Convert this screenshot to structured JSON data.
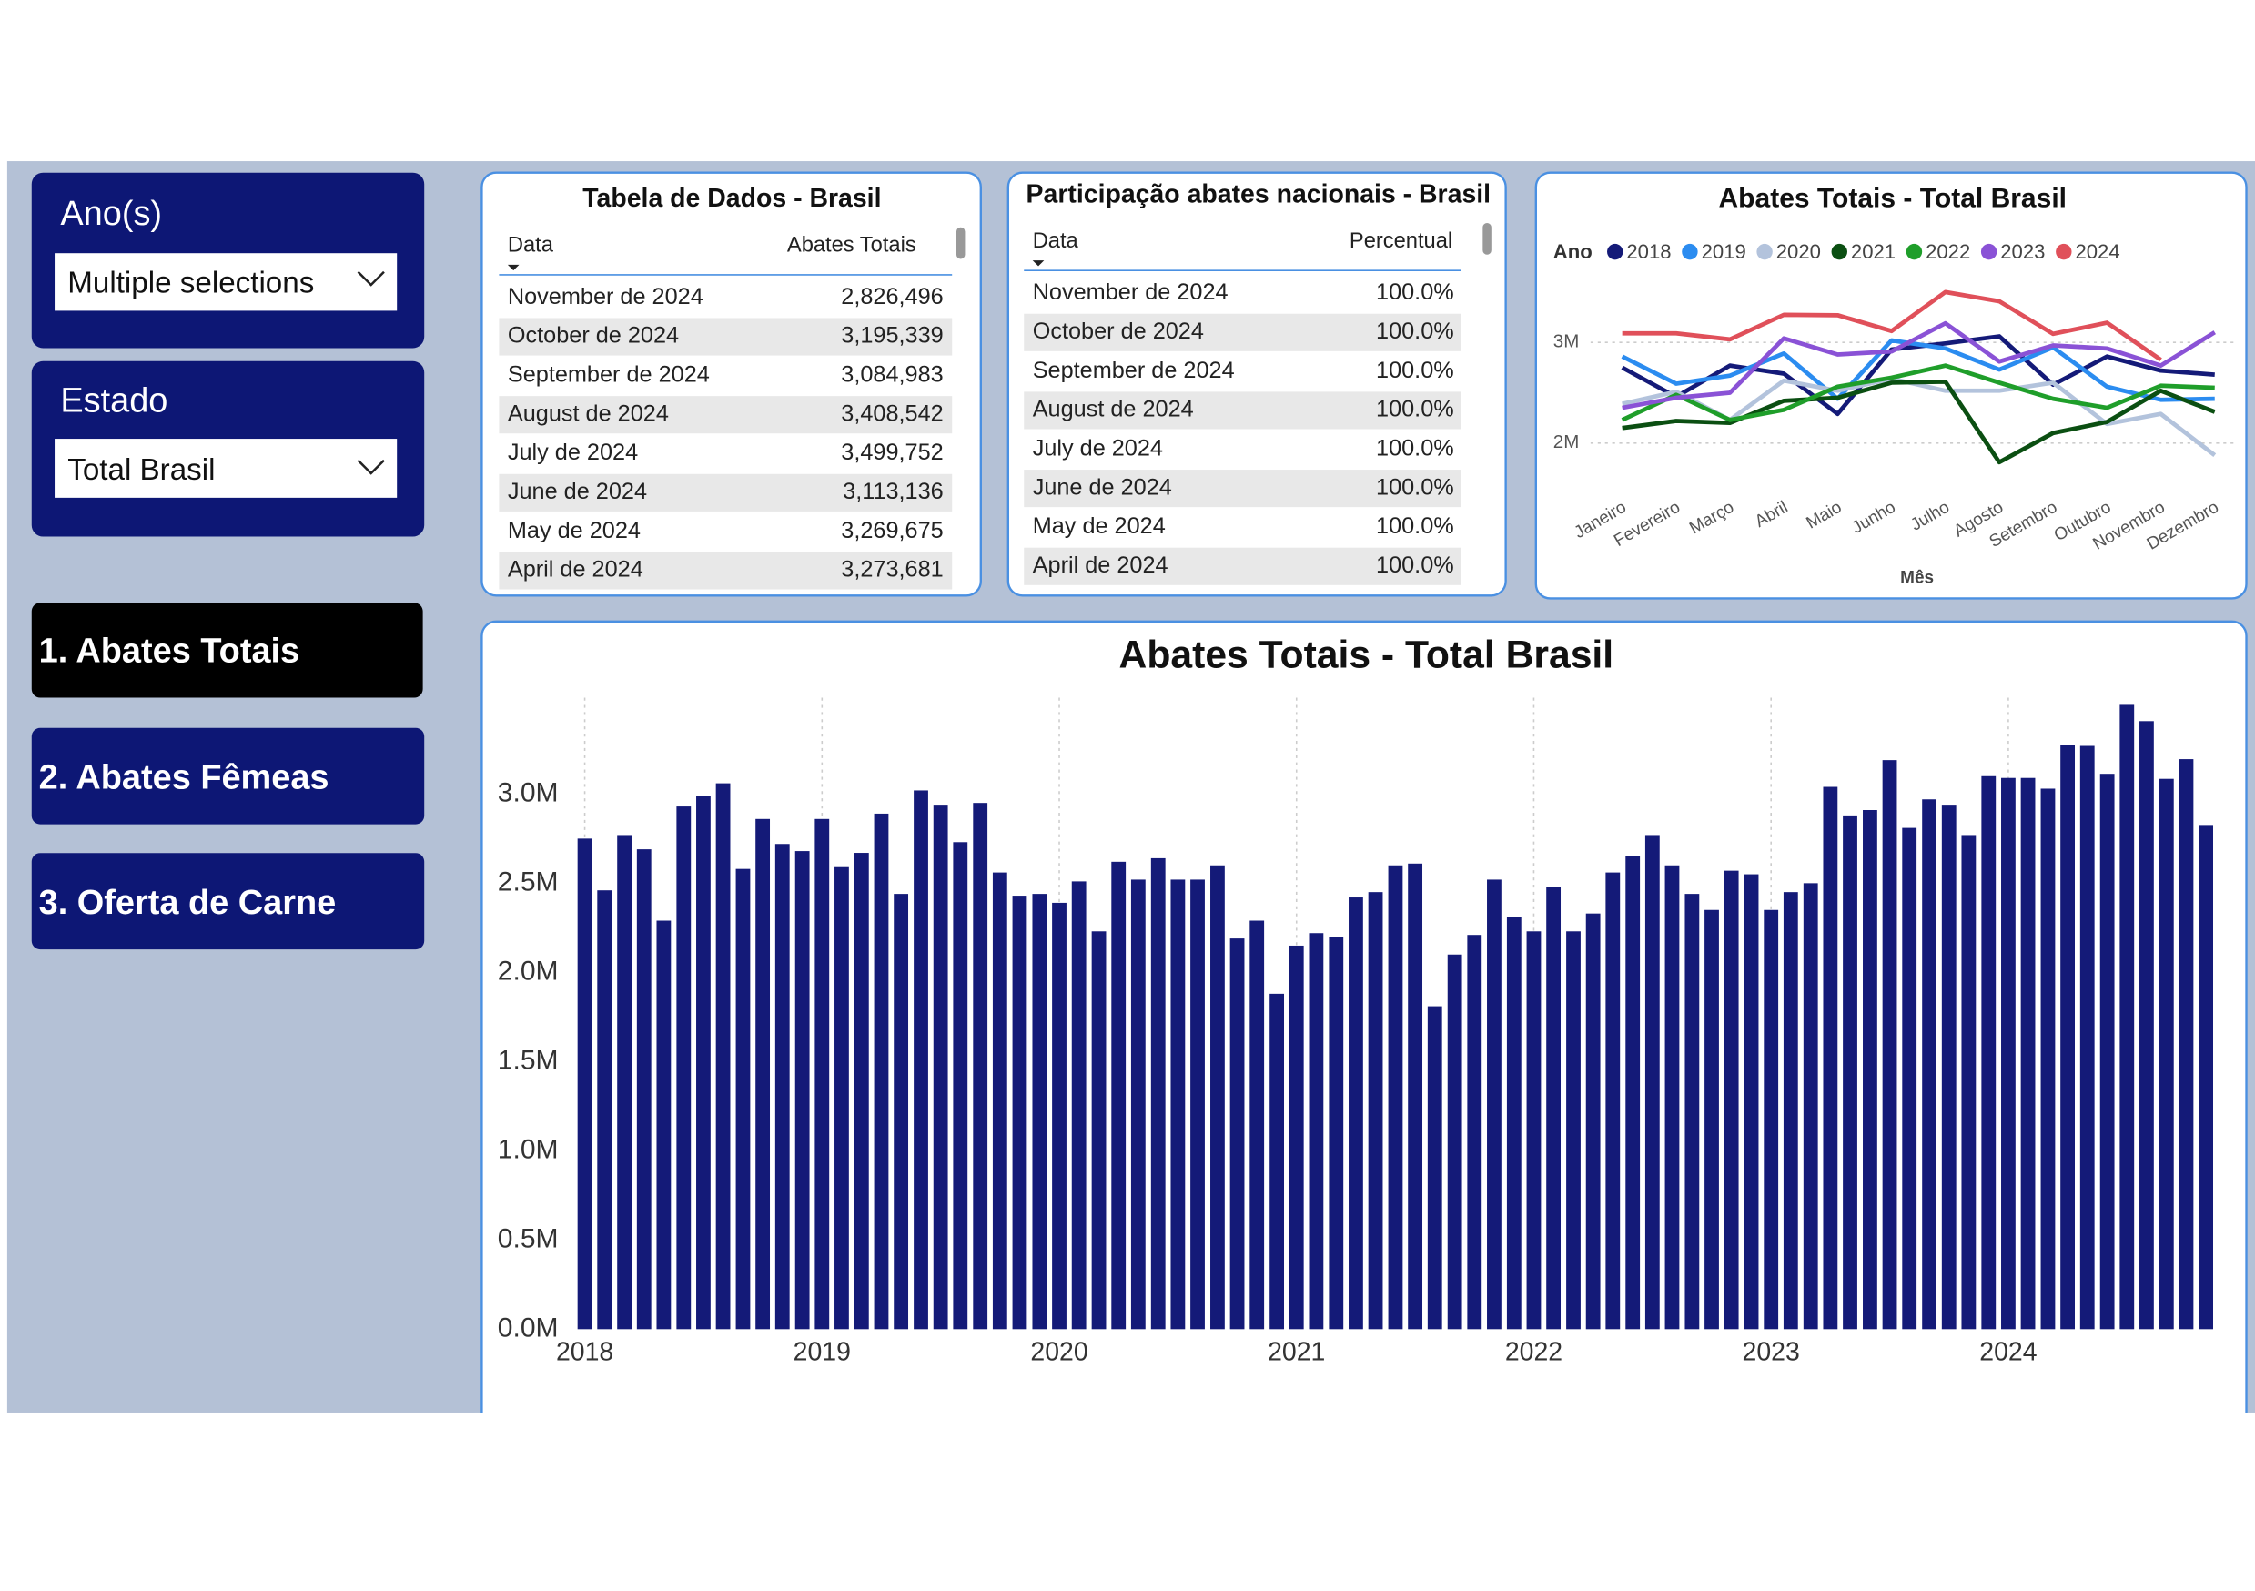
{
  "slicers": [
    {
      "label": "Ano(s)",
      "value": "Multiple selections"
    },
    {
      "label": "Estado",
      "value": "Total Brasil"
    }
  ],
  "buttons": [
    "1. Abates Totais",
    "2. Abates Fêmeas",
    "3. Oferta de Carne"
  ],
  "tables": [
    {
      "title": "Tabela de Dados - Brasil",
      "columns": [
        "Data",
        "Abates Totais"
      ],
      "rows": [
        [
          "November de 2024",
          "2,826,496"
        ],
        [
          "October de 2024",
          "3,195,339"
        ],
        [
          "September de 2024",
          "3,084,983"
        ],
        [
          "August de 2024",
          "3,408,542"
        ],
        [
          "July de 2024",
          "3,499,752"
        ],
        [
          "June de 2024",
          "3,113,136"
        ],
        [
          "May de 2024",
          "3,269,675"
        ],
        [
          "April de 2024",
          "3,273,681"
        ]
      ]
    },
    {
      "title": "Participação abates nacionais - Brasil",
      "columns": [
        "Data",
        "Percentual"
      ],
      "rows": [
        [
          "November de 2024",
          "100.0%"
        ],
        [
          "October de 2024",
          "100.0%"
        ],
        [
          "September de 2024",
          "100.0%"
        ],
        [
          "August de 2024",
          "100.0%"
        ],
        [
          "July de 2024",
          "100.0%"
        ],
        [
          "June de 2024",
          "100.0%"
        ],
        [
          "May de 2024",
          "100.0%"
        ],
        [
          "April de 2024",
          "100.0%"
        ]
      ]
    }
  ],
  "chart_data": [
    {
      "type": "line",
      "title": "Abates Totais - Total Brasil",
      "legend_title": "Ano",
      "legend": "top-left",
      "x_label": "Mês",
      "grid": "y",
      "categories": [
        "Janeiro",
        "Fevereiro",
        "Março",
        "Abril",
        "Maio",
        "Junho",
        "Julho",
        "Agosto",
        "Setembro",
        "Outubro",
        "Novembro",
        "Dezembro"
      ],
      "ylim": [
        1500000,
        3550000
      ],
      "yticks": [
        {
          "value": 2000000,
          "label": "2M"
        },
        {
          "value": 3000000,
          "label": "3M"
        }
      ],
      "series": [
        {
          "name": "2018",
          "color": "#141a78",
          "values": [
            2750000,
            2460000,
            2770000,
            2690000,
            2290000,
            2930000,
            2990000,
            3060000,
            2580000,
            2860000,
            2720000,
            2680000
          ]
        },
        {
          "name": "2019",
          "color": "#2b8cf0",
          "values": [
            2860000,
            2590000,
            2670000,
            2890000,
            2440000,
            3020000,
            2940000,
            2730000,
            2950000,
            2560000,
            2430000,
            2440000
          ]
        },
        {
          "name": "2020",
          "color": "#b3c3dc",
          "values": [
            2390000,
            2510000,
            2230000,
            2620000,
            2520000,
            2640000,
            2520000,
            2520000,
            2600000,
            2190000,
            2290000,
            1880000
          ]
        },
        {
          "name": "2021",
          "color": "#0b4f12",
          "values": [
            2150000,
            2220000,
            2200000,
            2420000,
            2450000,
            2600000,
            2610000,
            1810000,
            2100000,
            2210000,
            2520000,
            2310000
          ]
        },
        {
          "name": "2022",
          "color": "#1f9e2a",
          "values": [
            2230000,
            2480000,
            2230000,
            2330000,
            2560000,
            2650000,
            2770000,
            2600000,
            2440000,
            2350000,
            2570000,
            2550000
          ]
        },
        {
          "name": "2023",
          "color": "#8a52d6",
          "values": [
            2350000,
            2450000,
            2500000,
            3040000,
            2880000,
            2910000,
            3190000,
            2810000,
            2970000,
            2940000,
            2770000,
            3100000
          ]
        },
        {
          "name": "2024",
          "color": "#e0505a",
          "values": [
            3090000,
            3090000,
            3030000,
            3273681,
            3269675,
            3113136,
            3499752,
            3408542,
            3084983,
            3195339,
            2826496,
            null
          ]
        }
      ]
    },
    {
      "type": "bar",
      "title": "Abates Totais - Total Brasil",
      "color": "#141a78",
      "grid": "x",
      "xlim": [
        2017.96,
        2024.87
      ],
      "xticks": [
        2018,
        2019,
        2020,
        2021,
        2022,
        2023,
        2024
      ],
      "ylim": [
        0,
        3540000
      ],
      "yticks": [
        {
          "value": 0,
          "label": "0.0M"
        },
        {
          "value": 500000,
          "label": "0.5M"
        },
        {
          "value": 1000000,
          "label": "1.0M"
        },
        {
          "value": 1500000,
          "label": "1.5M"
        },
        {
          "value": 2000000,
          "label": "2.0M"
        },
        {
          "value": 2500000,
          "label": "2.5M"
        },
        {
          "value": 3000000,
          "label": "3.0M"
        }
      ],
      "x": [
        2018,
        2018.083,
        2018.167,
        2018.25,
        2018.333,
        2018.417,
        2018.5,
        2018.583,
        2018.667,
        2018.75,
        2018.833,
        2018.917,
        2019,
        2019.083,
        2019.167,
        2019.25,
        2019.333,
        2019.417,
        2019.5,
        2019.583,
        2019.667,
        2019.75,
        2019.833,
        2019.917,
        2020,
        2020.083,
        2020.167,
        2020.25,
        2020.333,
        2020.417,
        2020.5,
        2020.583,
        2020.667,
        2020.75,
        2020.833,
        2020.917,
        2021,
        2021.083,
        2021.167,
        2021.25,
        2021.333,
        2021.417,
        2021.5,
        2021.583,
        2021.667,
        2021.75,
        2021.833,
        2021.917,
        2022,
        2022.083,
        2022.167,
        2022.25,
        2022.333,
        2022.417,
        2022.5,
        2022.583,
        2022.667,
        2022.75,
        2022.833,
        2022.917,
        2023,
        2023.083,
        2023.167,
        2023.25,
        2023.333,
        2023.417,
        2023.5,
        2023.583,
        2023.667,
        2023.75,
        2023.833,
        2023.917,
        2024,
        2024.083,
        2024.167,
        2024.25,
        2024.333,
        2024.417,
        2024.5,
        2024.583,
        2024.667,
        2024.75,
        2024.833
      ],
      "values": [
        2750000,
        2460000,
        2770000,
        2690000,
        2290000,
        2930000,
        2990000,
        3060000,
        2580000,
        2860000,
        2720000,
        2680000,
        2860000,
        2590000,
        2670000,
        2890000,
        2440000,
        3020000,
        2940000,
        2730000,
        2950000,
        2560000,
        2430000,
        2440000,
        2390000,
        2510000,
        2230000,
        2620000,
        2520000,
        2640000,
        2520000,
        2520000,
        2600000,
        2190000,
        2290000,
        1880000,
        2150000,
        2220000,
        2200000,
        2420000,
        2450000,
        2600000,
        2610000,
        1810000,
        2100000,
        2210000,
        2520000,
        2310000,
        2230000,
        2480000,
        2230000,
        2330000,
        2560000,
        2650000,
        2770000,
        2600000,
        2440000,
        2350000,
        2570000,
        2550000,
        2350000,
        2450000,
        2500000,
        3040000,
        2880000,
        2910000,
        3190000,
        2810000,
        2970000,
        2940000,
        2770000,
        3100000,
        3090000,
        3090000,
        3030000,
        3273681,
        3269675,
        3113136,
        3499752,
        3408542,
        3084983,
        3195339,
        2826496
      ]
    }
  ]
}
